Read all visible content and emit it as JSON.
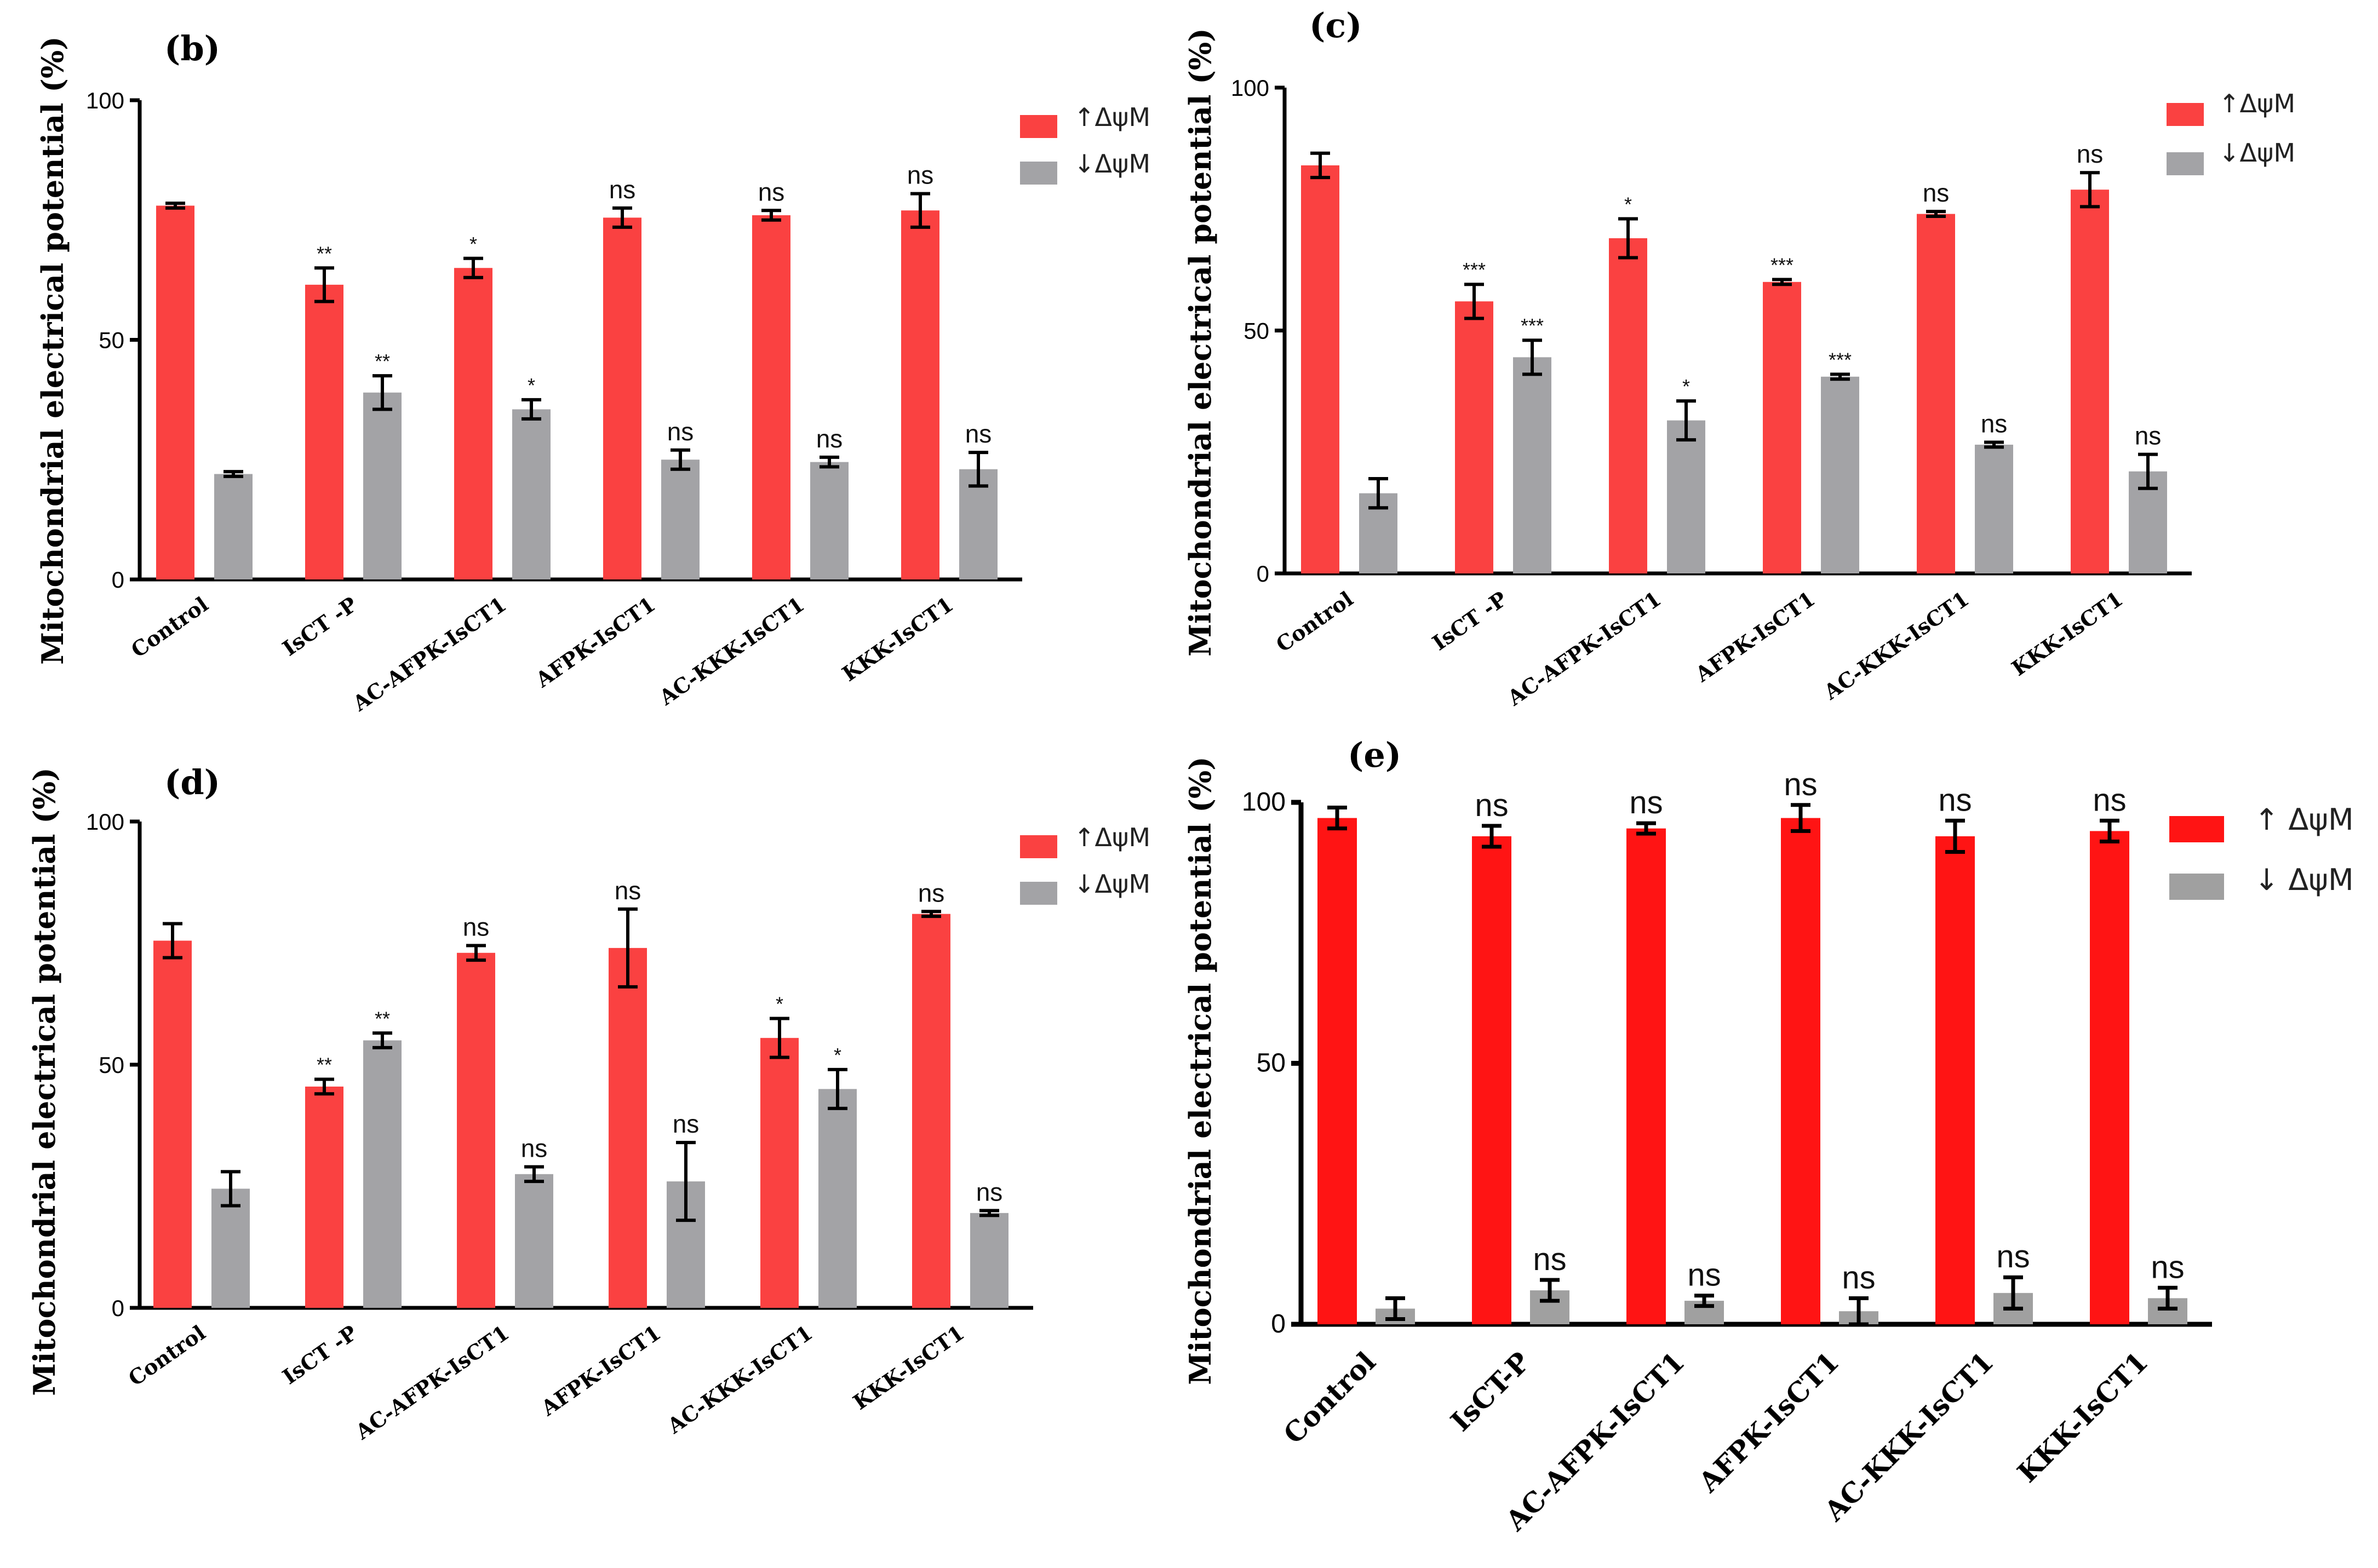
{
  "colors": {
    "up": "#fa4141",
    "down": "#a3a3a6",
    "up_e": "#ff1414",
    "down_e": "#a0a0a0"
  },
  "chart_data": [
    {
      "panel": "(b)",
      "type": "bar",
      "ylabel": "Mitochondrial electrical potential (%)",
      "ylim": [
        0,
        100
      ],
      "yticks": [
        "0",
        "50",
        "100"
      ],
      "categories": [
        "Control",
        "IsCT -P",
        "AC-AFPK-IsCT1",
        "AFPK-IsCT1",
        "AC-KKK-IsCT1",
        "KKK-IsCT1"
      ],
      "legend": [
        "↑ΔψM",
        "↓ΔψM"
      ],
      "series": [
        {
          "name": "↑ΔψM",
          "values": [
            78,
            61.5,
            65,
            75.5,
            76,
            77
          ],
          "errors": [
            0.5,
            3.5,
            2,
            2,
            1,
            3.5
          ],
          "annotations": [
            "",
            "**",
            "*",
            "ns",
            "ns",
            "ns"
          ]
        },
        {
          "name": "↓ΔψM",
          "values": [
            22,
            39,
            35.5,
            25,
            24.5,
            23
          ],
          "errors": [
            0.5,
            3.5,
            2,
            2,
            1,
            3.5
          ],
          "annotations": [
            "",
            "**",
            "*",
            "ns",
            "ns",
            "ns"
          ]
        }
      ]
    },
    {
      "panel": "(c)",
      "type": "bar",
      "ylabel": "Mitochondrial electrical potential (%)",
      "ylim": [
        0,
        100
      ],
      "yticks": [
        "0",
        "50",
        "100"
      ],
      "categories": [
        "Control",
        "IsCT -P",
        "AC-AFPK-IsCT1",
        "AFPK-IsCT1",
        "AC-KKK-IsCT1",
        "KKK-IsCT1"
      ],
      "legend": [
        "↑ΔψM",
        "↓ΔψM"
      ],
      "series": [
        {
          "name": "↑ΔψM",
          "values": [
            84,
            56,
            69,
            60,
            74,
            79
          ],
          "errors": [
            2.5,
            3.5,
            4,
            0.5,
            0.5,
            3.5
          ],
          "annotations": [
            "",
            "***",
            "*",
            "***",
            "ns",
            "ns"
          ]
        },
        {
          "name": "↓ΔψM",
          "values": [
            16.5,
            44.5,
            31.5,
            40.5,
            26.5,
            21
          ],
          "errors": [
            3,
            3.5,
            4,
            0.5,
            0.5,
            3.5
          ],
          "annotations": [
            "",
            "***",
            "*",
            "***",
            "ns",
            "ns"
          ]
        }
      ]
    },
    {
      "panel": "(d)",
      "type": "bar",
      "ylabel": "Mitochondrial electrical potential (%)",
      "ylim": [
        0,
        100
      ],
      "yticks": [
        "0",
        "50",
        "100"
      ],
      "categories": [
        "Control",
        "IsCT -P",
        "AC-AFPK-IsCT1",
        "AFPK-IsCT1",
        "AC-KKK-IsCT1",
        "KKK-IsCT1"
      ],
      "legend": [
        "↑ΔψM",
        "↓ΔψM"
      ],
      "series": [
        {
          "name": "↑ΔψM",
          "values": [
            75.5,
            45.5,
            73,
            74,
            55.5,
            81
          ],
          "errors": [
            3.5,
            1.5,
            1.5,
            8,
            4,
            0.5
          ],
          "annotations": [
            "",
            "**",
            "ns",
            "ns",
            "*",
            "ns"
          ]
        },
        {
          "name": "↓ΔψM",
          "values": [
            24.5,
            55,
            27.5,
            26,
            45,
            19.5
          ],
          "errors": [
            3.5,
            1.5,
            1.5,
            8,
            4,
            0.5
          ],
          "annotations": [
            "",
            "**",
            "ns",
            "ns",
            "*",
            "ns"
          ]
        }
      ]
    },
    {
      "panel": "(e)",
      "type": "bar",
      "ylabel": "Mitochondrial electrical potential (%)",
      "ylim": [
        0,
        100
      ],
      "yticks": [
        "0",
        "50",
        "100"
      ],
      "categories": [
        "Control",
        "IsCT-P",
        "AC-AFPK-IsCT1",
        "AFPK-IsCT1",
        "AC-KKK-IsCT1",
        "KKK-IsCT1"
      ],
      "legend": [
        "↑ ΔψM",
        "↓ ΔψM"
      ],
      "series": [
        {
          "name": "↑ ΔψM",
          "values": [
            97,
            93.5,
            95,
            97,
            93.5,
            94.5
          ],
          "errors": [
            2,
            2,
            1,
            2.5,
            3,
            2
          ],
          "annotations": [
            "",
            "ns",
            "ns",
            "ns",
            "ns",
            "ns"
          ]
        },
        {
          "name": "↓ ΔψM",
          "values": [
            3,
            6.5,
            4.5,
            2.5,
            6,
            5
          ],
          "errors": [
            2,
            2,
            1,
            2.5,
            3,
            2
          ],
          "annotations": [
            "",
            "ns",
            "ns",
            "ns",
            "ns",
            "ns"
          ]
        }
      ]
    }
  ]
}
